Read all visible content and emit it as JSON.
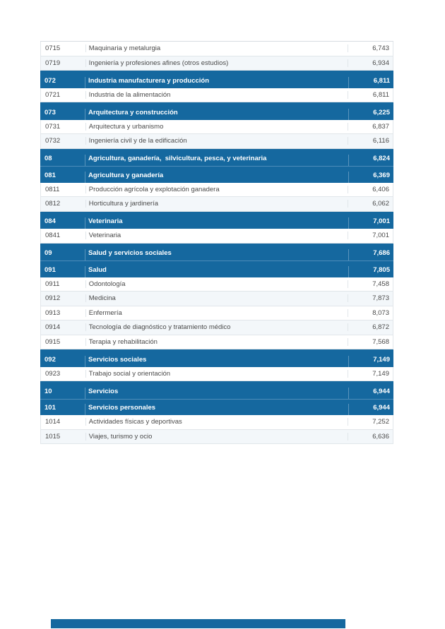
{
  "table": {
    "rows": [
      {
        "kind": "item",
        "code": "0715",
        "label": "Maquinaria y metalurgia",
        "value": "6,743"
      },
      {
        "kind": "item",
        "code": "0719",
        "label": "Ingeniería y profesiones afines (otros estudios)",
        "value": "6,934"
      },
      {
        "kind": "header",
        "code": "072",
        "label": "Industria manufacturera y producción",
        "value": "6,811"
      },
      {
        "kind": "item",
        "code": "0721",
        "label": "Industria de la alimentación",
        "value": "6,811"
      },
      {
        "kind": "header",
        "code": "073",
        "label": "Arquitectura y construcción",
        "value": "6,225"
      },
      {
        "kind": "item",
        "code": "0731",
        "label": "Arquitectura y urbanismo",
        "value": "6,837"
      },
      {
        "kind": "item",
        "code": "0732",
        "label": "Ingeniería civil y de la edificación",
        "value": "6,116"
      },
      {
        "kind": "header",
        "code": "08",
        "label": "Agricultura, ganadería,  silvicultura, pesca, y veterinaria",
        "value": "6,824"
      },
      {
        "kind": "header",
        "code": "081",
        "label": "Agricultura y ganadería",
        "value": "6,369"
      },
      {
        "kind": "item",
        "code": "0811",
        "label": "Producción agrícola y explotación ganadera",
        "value": "6,406"
      },
      {
        "kind": "item",
        "code": "0812",
        "label": "Horticultura y jardinería",
        "value": "6,062"
      },
      {
        "kind": "header",
        "code": "084",
        "label": "Veterinaria",
        "value": "7,001"
      },
      {
        "kind": "item",
        "code": "0841",
        "label": "Veterinaria",
        "value": "7,001"
      },
      {
        "kind": "header",
        "code": "09",
        "label": "Salud y servicios sociales",
        "value": "7,686"
      },
      {
        "kind": "header",
        "code": "091",
        "label": "Salud",
        "value": "7,805"
      },
      {
        "kind": "item",
        "code": "0911",
        "label": "Odontología",
        "value": "7,458"
      },
      {
        "kind": "item",
        "code": "0912",
        "label": "Medicina",
        "value": "7,873"
      },
      {
        "kind": "item",
        "code": "0913",
        "label": "Enfermería",
        "value": "8,073"
      },
      {
        "kind": "item",
        "code": "0914",
        "label": "Tecnología de diagnóstico y tratamiento médico",
        "value": "6,872"
      },
      {
        "kind": "item",
        "code": "0915",
        "label": "Terapia y rehabilitación",
        "value": "7,568"
      },
      {
        "kind": "header",
        "code": "092",
        "label": "Servicios sociales",
        "value": "7,149"
      },
      {
        "kind": "item",
        "code": "0923",
        "label": "Trabajo social y orientación",
        "value": "7,149"
      },
      {
        "kind": "header",
        "code": "10",
        "label": "Servicios",
        "value": "6,944"
      },
      {
        "kind": "header",
        "code": "101",
        "label": "Servicios personales",
        "value": "6,944"
      },
      {
        "kind": "item",
        "code": "1014",
        "label": "Actividades físicas y deportivas",
        "value": "7,252"
      },
      {
        "kind": "item",
        "code": "1015",
        "label": "Viajes, turismo y ocio",
        "value": "6,636"
      }
    ]
  },
  "colors": {
    "header_background": "#15689F",
    "header_text": "#ffffff",
    "item_text": "#4a4a4a",
    "row_border": "#e1e6ea",
    "footer_bar": "#15689F"
  }
}
